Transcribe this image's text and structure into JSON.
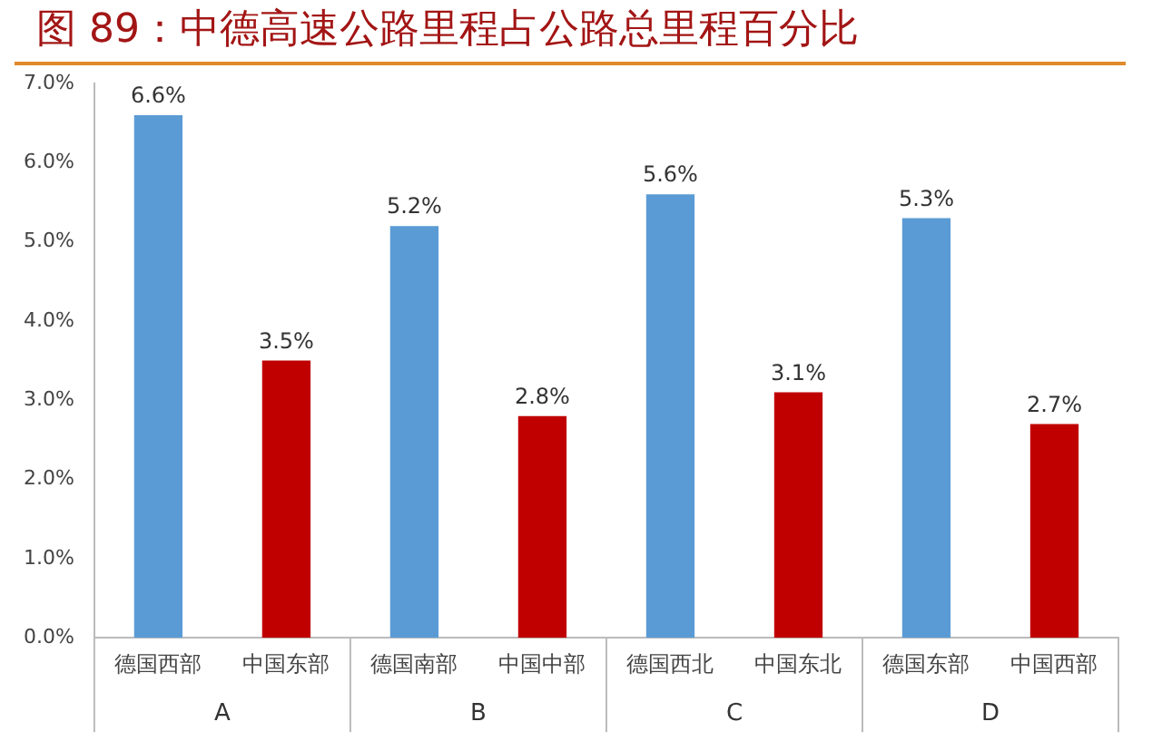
{
  "chart_data": {
    "type": "bar",
    "title": "图 89：中德高速公路里程占公路总里程百分比",
    "categories": [
      "德国西部",
      "中国东部",
      "德国南部",
      "中国中部",
      "德国西北",
      "中国东北",
      "德国东部",
      "中国西部"
    ],
    "values": [
      6.6,
      3.5,
      5.2,
      2.8,
      5.6,
      3.1,
      5.3,
      2.7
    ],
    "colors": [
      "#5b9bd5",
      "#c00000",
      "#5b9bd5",
      "#c00000",
      "#5b9bd5",
      "#c00000",
      "#5b9bd5",
      "#c00000"
    ],
    "value_labels": [
      "6.6%",
      "3.5%",
      "5.2%",
      "2.8%",
      "5.6%",
      "3.1%",
      "5.3%",
      "2.7%"
    ],
    "annotations": [
      "A",
      "B",
      "C",
      "D"
    ],
    "ylim": [
      0,
      7
    ],
    "yticks": [
      {
        "value": 0,
        "label": "0.0%"
      },
      {
        "value": 1,
        "label": "1.0%"
      },
      {
        "value": 2,
        "label": "2.0%"
      },
      {
        "value": 3,
        "label": "3.0%"
      },
      {
        "value": 4,
        "label": "4.0%"
      },
      {
        "value": 5,
        "label": "5.0%"
      },
      {
        "value": 6,
        "label": "6.0%"
      },
      {
        "value": 7,
        "label": "7.0%"
      }
    ],
    "grid": false,
    "legend": false
  }
}
